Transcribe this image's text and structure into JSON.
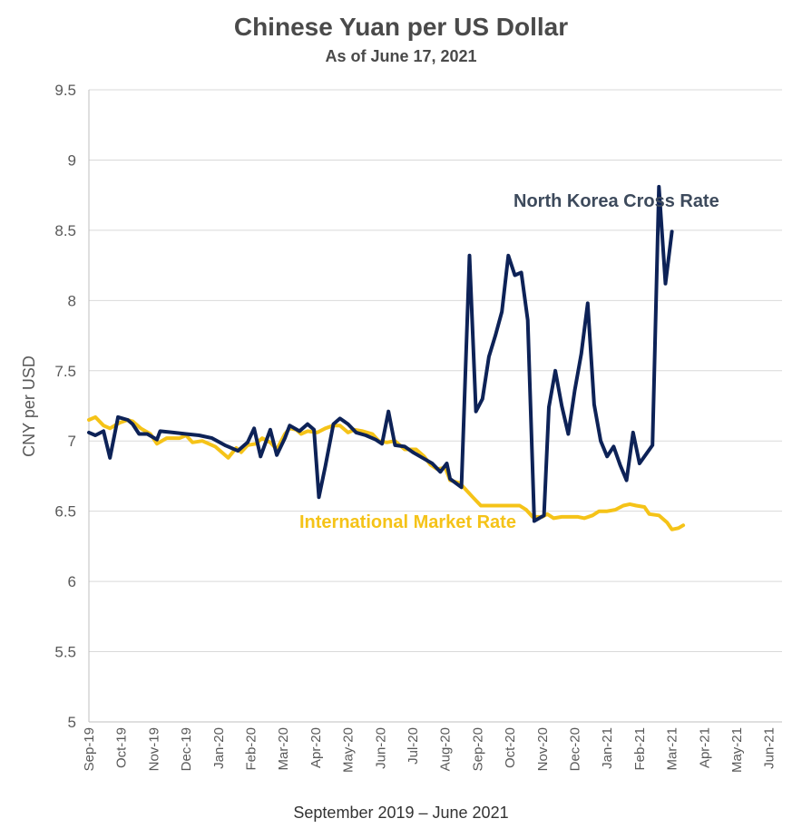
{
  "title": "Chinese Yuan per US Dollar",
  "subtitle": "As of June 17, 2021",
  "chart_data": {
    "type": "line",
    "title": "Chinese Yuan per US Dollar",
    "subtitle": "As of June 17, 2021",
    "xlabel": "September 2019 – June 2021",
    "ylabel": "CNY per USD",
    "ylim": [
      5,
      9.5
    ],
    "yticks": [
      "5",
      "5.5",
      "6",
      "6.5",
      "7",
      "7.5",
      "8",
      "8.5",
      "9",
      "9.5"
    ],
    "xticks": [
      "Sep-19",
      "Oct-19",
      "Nov-19",
      "Dec-19",
      "Jan-20",
      "Feb-20",
      "Mar-20",
      "Apr-20",
      "May-20",
      "Jun-20",
      "Jul-20",
      "Aug-20",
      "Sep-20",
      "Oct-20",
      "Nov-20",
      "Dec-20",
      "Jan-21",
      "Feb-21",
      "Mar-21",
      "Apr-21",
      "May-21",
      "Jun-21"
    ],
    "grid": true,
    "series": [
      {
        "name": "North Korea Cross Rate",
        "color": "#0d2257",
        "points": [
          [
            0.0,
            7.06
          ],
          [
            0.2,
            7.04
          ],
          [
            0.45,
            7.07
          ],
          [
            0.65,
            6.88
          ],
          [
            0.9,
            7.17
          ],
          [
            1.2,
            7.15
          ],
          [
            1.35,
            7.12
          ],
          [
            1.55,
            7.05
          ],
          [
            1.8,
            7.05
          ],
          [
            2.1,
            7.01
          ],
          [
            2.2,
            7.07
          ],
          [
            2.6,
            7.06
          ],
          [
            3.0,
            7.05
          ],
          [
            3.4,
            7.04
          ],
          [
            3.8,
            7.02
          ],
          [
            4.2,
            6.97
          ],
          [
            4.6,
            6.93
          ],
          [
            4.9,
            6.99
          ],
          [
            5.1,
            7.09
          ],
          [
            5.3,
            6.89
          ],
          [
            5.6,
            7.08
          ],
          [
            5.8,
            6.9
          ],
          [
            6.05,
            7.02
          ],
          [
            6.2,
            7.11
          ],
          [
            6.5,
            7.07
          ],
          [
            6.75,
            7.12
          ],
          [
            6.95,
            7.08
          ],
          [
            7.1,
            6.6
          ],
          [
            7.3,
            6.82
          ],
          [
            7.55,
            7.12
          ],
          [
            7.75,
            7.16
          ],
          [
            8.0,
            7.12
          ],
          [
            8.25,
            7.06
          ],
          [
            8.55,
            7.04
          ],
          [
            8.85,
            7.01
          ],
          [
            9.05,
            6.98
          ],
          [
            9.25,
            7.21
          ],
          [
            9.45,
            6.97
          ],
          [
            9.75,
            6.96
          ],
          [
            10.0,
            6.92
          ],
          [
            10.3,
            6.88
          ],
          [
            10.6,
            6.84
          ],
          [
            10.85,
            6.78
          ],
          [
            11.05,
            6.84
          ],
          [
            11.15,
            6.73
          ],
          [
            11.5,
            6.67
          ],
          [
            11.75,
            8.32
          ],
          [
            11.95,
            7.21
          ],
          [
            12.15,
            7.3
          ],
          [
            12.35,
            7.6
          ],
          [
            12.55,
            7.75
          ],
          [
            12.75,
            7.92
          ],
          [
            12.95,
            8.32
          ],
          [
            13.15,
            8.18
          ],
          [
            13.35,
            8.2
          ],
          [
            13.55,
            7.86
          ],
          [
            13.75,
            6.43
          ],
          [
            14.05,
            6.47
          ],
          [
            14.2,
            7.24
          ],
          [
            14.4,
            7.5
          ],
          [
            14.6,
            7.25
          ],
          [
            14.8,
            7.05
          ],
          [
            15.0,
            7.36
          ],
          [
            15.2,
            7.62
          ],
          [
            15.4,
            7.98
          ],
          [
            15.6,
            7.26
          ],
          [
            15.8,
            7.0
          ],
          [
            16.0,
            6.89
          ],
          [
            16.2,
            6.96
          ],
          [
            16.4,
            6.83
          ],
          [
            16.6,
            6.72
          ],
          [
            16.8,
            7.06
          ],
          [
            17.0,
            6.84
          ],
          [
            17.4,
            6.97
          ],
          [
            17.6,
            8.81
          ],
          [
            17.8,
            8.12
          ],
          [
            18.0,
            8.49
          ]
        ]
      },
      {
        "name": "International Market Rate",
        "color": "#f5c318",
        "points": [
          [
            0.0,
            7.15
          ],
          [
            0.2,
            7.17
          ],
          [
            0.45,
            7.11
          ],
          [
            0.65,
            7.09
          ],
          [
            0.95,
            7.13
          ],
          [
            1.2,
            7.15
          ],
          [
            1.35,
            7.14
          ],
          [
            1.6,
            7.09
          ],
          [
            1.9,
            7.05
          ],
          [
            2.1,
            6.98
          ],
          [
            2.4,
            7.02
          ],
          [
            2.8,
            7.02
          ],
          [
            3.0,
            7.04
          ],
          [
            3.2,
            6.99
          ],
          [
            3.5,
            7.0
          ],
          [
            3.9,
            6.96
          ],
          [
            4.3,
            6.88
          ],
          [
            4.55,
            6.95
          ],
          [
            4.7,
            6.92
          ],
          [
            4.9,
            6.97
          ],
          [
            5.15,
            6.98
          ],
          [
            5.35,
            7.02
          ],
          [
            5.6,
            6.99
          ],
          [
            5.8,
            6.94
          ],
          [
            6.05,
            7.05
          ],
          [
            6.2,
            7.09
          ],
          [
            6.4,
            7.08
          ],
          [
            6.55,
            7.05
          ],
          [
            6.75,
            7.07
          ],
          [
            7.05,
            7.06
          ],
          [
            7.3,
            7.09
          ],
          [
            7.55,
            7.11
          ],
          [
            7.75,
            7.11
          ],
          [
            8.0,
            7.06
          ],
          [
            8.2,
            7.08
          ],
          [
            8.45,
            7.07
          ],
          [
            8.75,
            7.05
          ],
          [
            8.95,
            7.0
          ],
          [
            9.2,
            6.99
          ],
          [
            9.45,
            7.0
          ],
          [
            9.75,
            6.94
          ],
          [
            10.1,
            6.94
          ],
          [
            10.35,
            6.89
          ],
          [
            10.55,
            6.83
          ],
          [
            10.75,
            6.8
          ],
          [
            11.0,
            6.81
          ],
          [
            11.15,
            6.72
          ],
          [
            11.45,
            6.7
          ],
          [
            11.65,
            6.65
          ],
          [
            11.85,
            6.6
          ],
          [
            12.1,
            6.54
          ],
          [
            12.4,
            6.54
          ],
          [
            12.75,
            6.54
          ],
          [
            13.0,
            6.54
          ],
          [
            13.3,
            6.54
          ],
          [
            13.5,
            6.51
          ],
          [
            13.7,
            6.46
          ],
          [
            14.0,
            6.46
          ],
          [
            14.15,
            6.48
          ],
          [
            14.35,
            6.45
          ],
          [
            14.6,
            6.46
          ],
          [
            14.85,
            6.46
          ],
          [
            15.1,
            6.46
          ],
          [
            15.3,
            6.45
          ],
          [
            15.55,
            6.47
          ],
          [
            15.75,
            6.5
          ],
          [
            16.0,
            6.5
          ],
          [
            16.25,
            6.51
          ],
          [
            16.5,
            6.54
          ],
          [
            16.7,
            6.55
          ],
          [
            16.9,
            6.54
          ],
          [
            17.15,
            6.53
          ],
          [
            17.3,
            6.48
          ],
          [
            17.6,
            6.47
          ],
          [
            17.85,
            6.42
          ],
          [
            18.0,
            6.37
          ],
          [
            18.2,
            6.38
          ],
          [
            18.35,
            6.4
          ]
        ]
      }
    ],
    "annotations": [
      "North Korea Cross Rate",
      "International Market Rate"
    ]
  }
}
